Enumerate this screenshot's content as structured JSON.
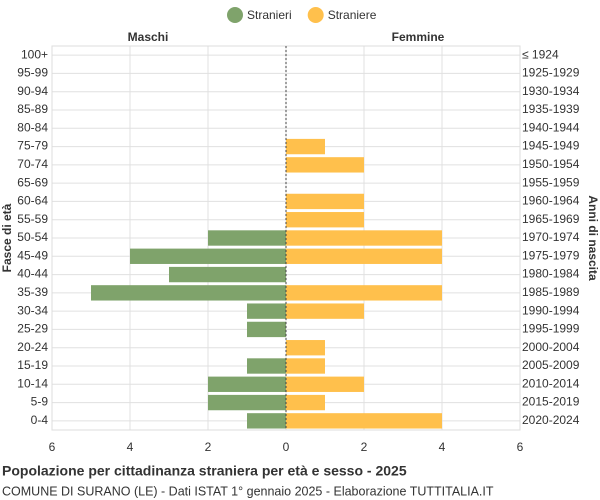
{
  "chart_data": {
    "type": "pyramid",
    "title": "Popolazione per cittadinanza straniera per età e sesso - 2025",
    "subtitle": "COMUNE DI SURANO (LE) - Dati ISTAT 1° gennaio 2025 - Elaborazione TUTTITALIA.IT",
    "left_label": "Maschi",
    "right_label": "Femmine",
    "y_label": "Fasce di età",
    "y2_label": "Anni di nascita",
    "categories": [
      "100+",
      "95-99",
      "90-94",
      "85-89",
      "80-84",
      "75-79",
      "70-74",
      "65-69",
      "60-64",
      "55-59",
      "50-54",
      "45-49",
      "40-44",
      "35-39",
      "30-34",
      "25-29",
      "20-24",
      "15-19",
      "10-14",
      "5-9",
      "0-4"
    ],
    "birth_years": [
      "≤ 1924",
      "1925-1929",
      "1930-1934",
      "1935-1939",
      "1940-1944",
      "1945-1949",
      "1950-1954",
      "1955-1959",
      "1960-1964",
      "1965-1969",
      "1970-1974",
      "1975-1979",
      "1980-1984",
      "1985-1989",
      "1990-1994",
      "1995-1999",
      "2000-2004",
      "2005-2009",
      "2010-2014",
      "2015-2019",
      "2020-2024"
    ],
    "series": [
      {
        "name": "Stranieri",
        "color": "#7fa36b",
        "side": "left",
        "values": [
          0,
          0,
          0,
          0,
          0,
          0,
          0,
          0,
          0,
          0,
          2,
          4,
          3,
          5,
          1,
          1,
          0,
          1,
          2,
          2,
          1
        ]
      },
      {
        "name": "Straniere",
        "color": "#ffc04c",
        "side": "right",
        "values": [
          0,
          0,
          0,
          0,
          0,
          1,
          2,
          0,
          2,
          2,
          4,
          4,
          0,
          4,
          2,
          0,
          1,
          1,
          2,
          1,
          4
        ]
      }
    ],
    "xlim": [
      -6,
      6
    ],
    "xticks": [
      {
        "value": -6,
        "label": "6"
      },
      {
        "value": -4,
        "label": "4"
      },
      {
        "value": -2,
        "label": "2"
      },
      0,
      2,
      4,
      6
    ],
    "grid": true,
    "legend": "top"
  }
}
